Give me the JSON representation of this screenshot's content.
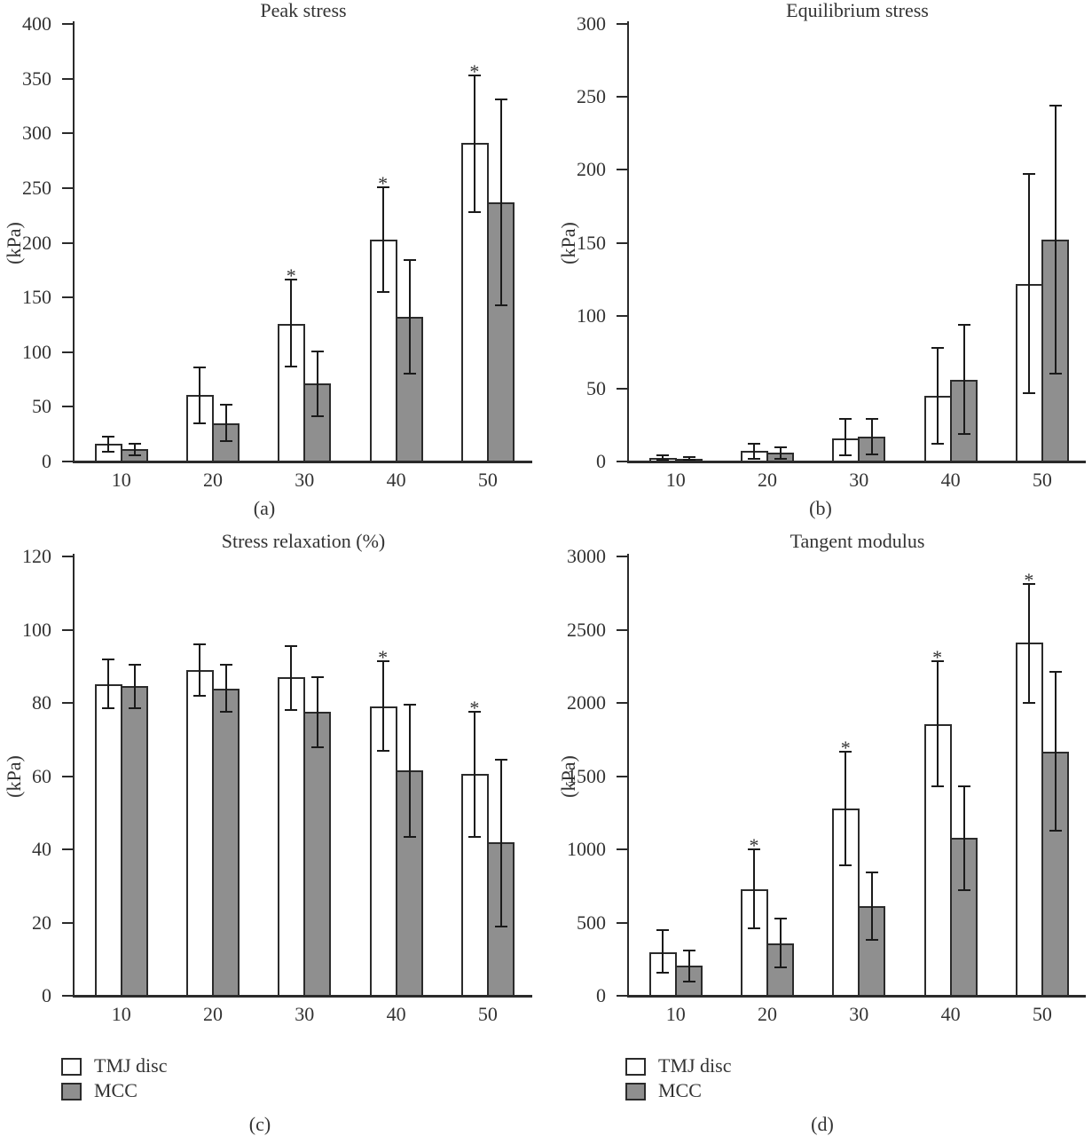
{
  "figure_caption_labels": [
    "(a)",
    "(b)",
    "(c)",
    "(d)"
  ],
  "sig_marker_glyph": "*",
  "legend": {
    "position": "below panels c and d, left-aligned",
    "items": [
      {
        "label": "TMJ disc",
        "fill": "#ffffff"
      },
      {
        "label": "MCC",
        "fill": "#8f8f8f"
      }
    ]
  },
  "colors": {
    "bar_outline": "#2b2b2b",
    "mcc_fill": "#8f8f8f",
    "tmj_fill": "#ffffff",
    "axis": "#2b2b2b",
    "error_bar": "#1a1a1a",
    "text": "#333333",
    "background": "#ffffff"
  },
  "chart_data": [
    {
      "type": "bar",
      "panel_label": "(a)",
      "title": "Peak stress",
      "ylabel": "(kPa)",
      "ylim": [
        0,
        400
      ],
      "ytick_step": 50,
      "yticks": [
        "0",
        "50",
        "100",
        "150",
        "200",
        "250",
        "300",
        "350",
        "400"
      ],
      "categories": [
        "10",
        "20",
        "30",
        "40",
        "50"
      ],
      "grid": false,
      "error_bars": "two-sided with caps",
      "sig_marker": "*",
      "significance_on": "TMJ disc",
      "significance": [
        false,
        false,
        true,
        true,
        true
      ],
      "series": [
        {
          "name": "TMJ disc",
          "fill": "#ffffff",
          "values": [
            16,
            61,
            126,
            203,
            291
          ],
          "err_low": [
            9,
            35,
            87,
            155,
            228
          ],
          "err_high": [
            23,
            86,
            166,
            251,
            353
          ]
        },
        {
          "name": "MCC",
          "fill": "#8f8f8f",
          "values": [
            11,
            35,
            71,
            132,
            237
          ],
          "err_low": [
            6,
            19,
            41,
            80,
            143
          ],
          "err_high": [
            16,
            52,
            101,
            184,
            331
          ]
        }
      ]
    },
    {
      "type": "bar",
      "panel_label": "(b)",
      "title": "Equilibrium stress",
      "ylabel": "(kPa)",
      "ylim": [
        0,
        300
      ],
      "ytick_step": 50,
      "yticks": [
        "0",
        "50",
        "100",
        "150",
        "200",
        "250",
        "300"
      ],
      "categories": [
        "10",
        "20",
        "30",
        "40",
        "50"
      ],
      "grid": false,
      "error_bars": "two-sided with caps",
      "sig_marker": "*",
      "significance_on": "TMJ disc",
      "significance": [
        false,
        false,
        false,
        false,
        false
      ],
      "series": [
        {
          "name": "TMJ disc",
          "fill": "#ffffff",
          "values": [
            2.5,
            7,
            16,
            45,
            122
          ],
          "err_low": [
            1,
            2,
            4,
            12,
            47
          ],
          "err_high": [
            4,
            12,
            29,
            78,
            197
          ]
        },
        {
          "name": "MCC",
          "fill": "#8f8f8f",
          "values": [
            2,
            6,
            17,
            56,
            152
          ],
          "err_low": [
            1,
            2,
            5,
            19,
            60
          ],
          "err_high": [
            3,
            10,
            29,
            94,
            244
          ]
        }
      ]
    },
    {
      "type": "bar",
      "panel_label": "(c)",
      "title": "Stress relaxation (%)",
      "ylabel": "(kPa)",
      "ylim": [
        0,
        120
      ],
      "ytick_step": 20,
      "yticks": [
        "0",
        "20",
        "40",
        "60",
        "80",
        "100",
        "120"
      ],
      "categories": [
        "10",
        "20",
        "30",
        "40",
        "50"
      ],
      "grid": false,
      "error_bars": "two-sided with caps",
      "sig_marker": "*",
      "significance_on": "TMJ disc",
      "significance": [
        false,
        false,
        false,
        true,
        true
      ],
      "series": [
        {
          "name": "TMJ disc",
          "fill": "#ffffff",
          "values": [
            85,
            89,
            87,
            79,
            60.5
          ],
          "err_low": [
            78.5,
            82,
            78,
            67,
            43.5
          ],
          "err_high": [
            92,
            96,
            95.5,
            91.5,
            77.5
          ]
        },
        {
          "name": "MCC",
          "fill": "#8f8f8f",
          "values": [
            84.5,
            84,
            77.5,
            61.5,
            42
          ],
          "err_low": [
            78.5,
            77.5,
            68,
            43.5,
            19
          ],
          "err_high": [
            90.5,
            90.5,
            87,
            79.5,
            64.5
          ]
        }
      ]
    },
    {
      "type": "bar",
      "panel_label": "(d)",
      "title": "Tangent modulus",
      "ylabel": "(kPa)",
      "ylim": [
        0,
        3000
      ],
      "ytick_step": 500,
      "yticks": [
        "0",
        "500",
        "1000",
        "1500",
        "2000",
        "2500",
        "3000"
      ],
      "categories": [
        "10",
        "20",
        "30",
        "40",
        "50"
      ],
      "grid": false,
      "error_bars": "two-sided with caps",
      "sig_marker": "*",
      "significance_on": "TMJ disc",
      "significance": [
        false,
        true,
        true,
        true,
        true
      ],
      "series": [
        {
          "name": "TMJ disc",
          "fill": "#ffffff",
          "values": [
            300,
            725,
            1280,
            1855,
            2415
          ],
          "err_low": [
            160,
            460,
            890,
            1430,
            2000
          ],
          "err_high": [
            450,
            1000,
            1665,
            2285,
            2810
          ]
        },
        {
          "name": "MCC",
          "fill": "#8f8f8f",
          "values": [
            205,
            360,
            612,
            1080,
            1668
          ],
          "err_low": [
            95,
            195,
            380,
            720,
            1130
          ],
          "err_high": [
            310,
            530,
            845,
            1430,
            2210
          ]
        }
      ]
    }
  ]
}
